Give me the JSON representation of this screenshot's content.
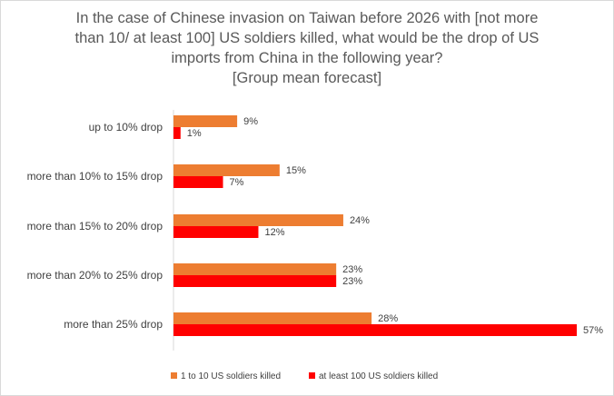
{
  "chart_data": {
    "type": "bar",
    "orientation": "horizontal",
    "title_lines": [
      "In the case of Chinese invasion on Taiwan before 2026 with [not more",
      "than 10/ at least 100] US soldiers killed, what would be the drop of US",
      "imports from China in the following year?",
      "[Group mean forecast]"
    ],
    "categories": [
      "up to 10% drop",
      "more than 10% to 15% drop",
      "more than 15% to 20% drop",
      "more than 20% to 25% drop",
      "more than 25% drop"
    ],
    "series": [
      {
        "name": "1 to 10 US soldiers killed",
        "color": "#ED7D31",
        "values": [
          9,
          15,
          24,
          23,
          28
        ],
        "labels": [
          "9%",
          "15%",
          "24%",
          "23%",
          "28%"
        ]
      },
      {
        "name": "at least 100 US soldiers killed",
        "color": "#FF0000",
        "values": [
          1,
          7,
          12,
          23,
          57
        ],
        "labels": [
          "1%",
          "7%",
          "12%",
          "23%",
          "57%"
        ]
      }
    ],
    "xlim": [
      0,
      57
    ],
    "grid": false,
    "legend_position": "bottom",
    "xlabel": "",
    "ylabel": ""
  }
}
